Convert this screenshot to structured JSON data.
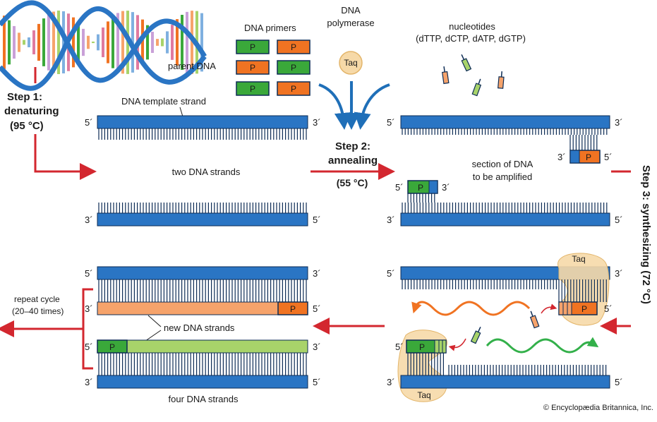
{
  "labels": {
    "dna_primers": "DNA primers",
    "dna_polymerase_1": "DNA",
    "dna_polymerase_2": "polymerase",
    "taq": "Taq",
    "nucleotides_1": "nucleotides",
    "nucleotides_2": "(dTTP, dCTP, dATP, dGTP)",
    "parent_dna": "parent DNA",
    "template_strand": "DNA template strand",
    "two_strands": "two DNA strands",
    "section_1": "section of DNA",
    "section_2": "to be amplified",
    "repeat_1": "repeat cycle",
    "repeat_2": "(20–40 times)",
    "new_strands": "new DNA strands",
    "four_strands": "four DNA strands",
    "primer_p": "P",
    "end_3": "3´",
    "end_5": "5´",
    "copyright": "© Encyclopædia Britannica, Inc."
  },
  "steps": {
    "step1_a": "Step 1:",
    "step1_b": "denaturing",
    "step1_temp": "(95 °C)",
    "step2_a": "Step 2:",
    "step2_b": "annealing",
    "step2_temp": "(55 °C)",
    "step3": "Step 3: synthesizing (72 °C)"
  },
  "colors": {
    "strand_blue": "#2a75c4",
    "strand_dark": "#0d2c55",
    "primer_green": "#3aa83a",
    "primer_orange": "#f07322",
    "new_green": "#a8d36a",
    "new_orange": "#f6a36b",
    "arrow_red": "#d3272f",
    "arrow_blue": "#1f6fb8",
    "taq_fill": "#f6d9a8",
    "wave_orange": "#f07322",
    "wave_green": "#33b04a"
  }
}
